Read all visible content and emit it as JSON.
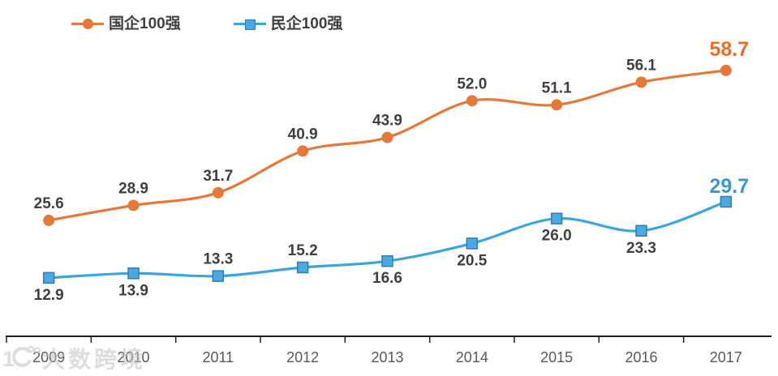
{
  "legend": {
    "items": [
      {
        "label": "国企100强",
        "color": "#E4793A",
        "marker": "circle"
      },
      {
        "label": "民企100强",
        "color": "#3BA5DC",
        "marker": "square"
      }
    ]
  },
  "watermark": {
    "logo_text": "100",
    "text": "大数跨境"
  },
  "chart_data": {
    "type": "line",
    "title": "",
    "categories": [
      "2009",
      "2010",
      "2011",
      "2012",
      "2013",
      "2014",
      "2015",
      "2016",
      "2017"
    ],
    "series": [
      {
        "name": "国企100强",
        "color": "#E4793A",
        "marker": "circle",
        "marker_fill": "#E4793A",
        "marker_border": "#E4793A",
        "values": [
          25.6,
          28.9,
          31.7,
          40.9,
          43.9,
          52.0,
          51.1,
          56.1,
          58.7
        ],
        "label_positions": [
          "above",
          "above",
          "above",
          "above",
          "above",
          "above",
          "above",
          "above",
          "above"
        ],
        "end_label_color": "#E4702E",
        "end_label_dy": -18
      },
      {
        "name": "民企100强",
        "color": "#3BA5DC",
        "marker": "square",
        "marker_fill": "#4DA8DD",
        "marker_border": "#2C7EBB",
        "values": [
          12.9,
          13.9,
          13.3,
          15.2,
          16.6,
          20.5,
          26.0,
          23.3,
          29.7
        ],
        "label_positions": [
          "below",
          "below",
          "above",
          "above",
          "below",
          "below",
          "below",
          "below",
          "above"
        ],
        "end_label_color": "#3F97CE",
        "end_label_dy": -11
      }
    ],
    "xlabel": "",
    "ylabel": "",
    "ylim": [
      0,
      74.25
    ],
    "grid": false,
    "legend_position": "top-left",
    "value_label_color": "#3F3F3F",
    "axis": {
      "line_color": "#1f1f1f",
      "tick_color": "#1f1f1f",
      "label_color": "#595959"
    }
  }
}
